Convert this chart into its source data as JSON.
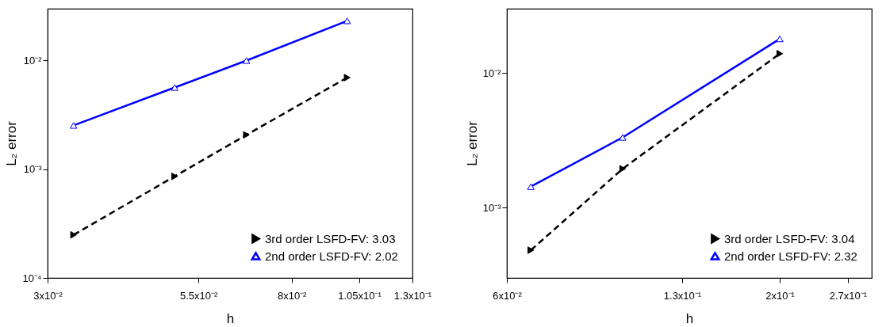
{
  "chart_data": [
    {
      "type": "line",
      "xlabel": "h",
      "ylabel": "L₂ error",
      "log": "xy",
      "legend": "bottom right",
      "grid": false,
      "x": [
        0.0333,
        0.05,
        0.0667,
        0.1
      ],
      "xlim": [
        0.03,
        0.13
      ],
      "xticks": [
        {
          "value": 0.03,
          "label": "3x10⁻²"
        },
        {
          "value": 0.055,
          "label": "5.5x10⁻²"
        },
        {
          "value": 0.08,
          "label": "8x10⁻²"
        },
        {
          "value": 0.105,
          "label": "1.05x10⁻¹"
        },
        {
          "value": 0.13,
          "label": "1.3x10⁻¹"
        }
      ],
      "ylim": [
        0.0001,
        0.03
      ],
      "yticks": [
        {
          "value": 0.0001,
          "label": "10⁻⁴"
        },
        {
          "value": 0.001,
          "label": "10⁻³"
        },
        {
          "value": 0.01,
          "label": "10⁻²"
        }
      ],
      "series": [
        {
          "name": "3rd order LSFD-FV: 3.03",
          "color": "#000000",
          "line_style": "dashed",
          "marker": "triangle",
          "values": [
            0.000249,
            0.00086,
            0.00207,
            0.00697
          ]
        },
        {
          "name": "2nd order LSFD-FV: 2.02",
          "color": "#0000ff",
          "line_style": "solid",
          "marker": "triangle",
          "values": [
            0.00253,
            0.00565,
            0.01,
            0.0232
          ]
        }
      ]
    },
    {
      "type": "line",
      "xlabel": "h",
      "ylabel": "L₂ error",
      "log": "xy",
      "legend": "bottom right",
      "grid": false,
      "x": [
        0.0667,
        0.1,
        0.2
      ],
      "xlim": [
        0.06,
        0.3
      ],
      "xticks": [
        {
          "value": 0.06,
          "label": "6x10⁻²"
        },
        {
          "value": 0.13,
          "label": "1.3x10⁻¹"
        },
        {
          "value": 0.2,
          "label": "2x10⁻¹"
        },
        {
          "value": 0.27,
          "label": "2.7x10⁻¹"
        }
      ],
      "ylim": [
        0.0003,
        0.03
      ],
      "yticks": [
        {
          "value": 0.001,
          "label": "10⁻³"
        },
        {
          "value": 0.01,
          "label": "10⁻²"
        }
      ],
      "series": [
        {
          "name": "3rd order LSFD-FV: 3.04",
          "color": "#000000",
          "line_style": "dashed",
          "marker": "triangle",
          "values": [
            0.000482,
            0.00194,
            0.0139
          ]
        },
        {
          "name": "2nd order LSFD-FV: 2.32",
          "color": "#0000ff",
          "line_style": "solid",
          "marker": "triangle",
          "values": [
            0.00143,
            0.00332,
            0.0179
          ]
        }
      ]
    }
  ]
}
